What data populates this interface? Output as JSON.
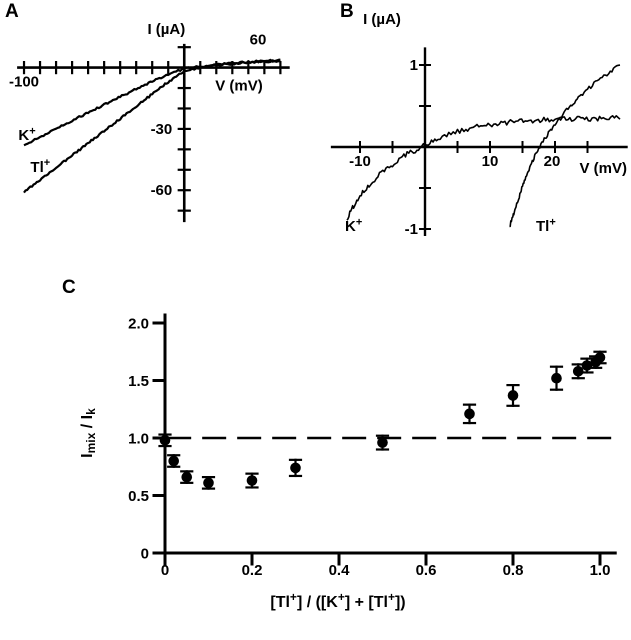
{
  "chart_data": [
    {
      "panel": "A",
      "type": "line",
      "x_axis": {
        "label": "V (mV)",
        "range": [
          -104,
          65
        ],
        "ticks": [
          -100,
          -90,
          -80,
          -70,
          -60,
          -50,
          -40,
          -30,
          -20,
          -10,
          10,
          20,
          30,
          40,
          50,
          60
        ],
        "labeled_ticks": [
          {
            "value": -100,
            "label": "-100"
          },
          {
            "value": 60,
            "label": "60"
          }
        ]
      },
      "y_axis": {
        "label": "I (µA)",
        "range": [
          -75,
          11
        ],
        "ticks": [
          10,
          -10,
          -20,
          -30,
          -40,
          -50,
          -60,
          -70
        ],
        "labeled_ticks": [
          {
            "value": -30,
            "label": "-30"
          },
          {
            "value": -60,
            "label": "-60"
          }
        ]
      },
      "series": [
        {
          "name": "K+",
          "label_rich": "K^{+}",
          "points": [
            [
              -100,
              -38
            ],
            [
              -90,
              -34
            ],
            [
              -80,
              -30
            ],
            [
              -70,
              -26
            ],
            [
              -60,
              -22
            ],
            [
              -50,
              -18.2
            ],
            [
              -40,
              -14.3
            ],
            [
              -30,
              -10.5
            ],
            [
              -20,
              -6.8
            ],
            [
              -10,
              -3.2
            ],
            [
              0,
              -0.6
            ],
            [
              10,
              0.6
            ],
            [
              20,
              1.3
            ],
            [
              30,
              1.9
            ],
            [
              40,
              2.4
            ],
            [
              50,
              2.9
            ],
            [
              60,
              3.3
            ]
          ]
        },
        {
          "name": "Tl+",
          "label_rich": "Tl^{+}",
          "points": [
            [
              -100,
              -61
            ],
            [
              -90,
              -55
            ],
            [
              -80,
              -49
            ],
            [
              -70,
              -43
            ],
            [
              -60,
              -37
            ],
            [
              -50,
              -31
            ],
            [
              -40,
              -25
            ],
            [
              -30,
              -19
            ],
            [
              -20,
              -13
            ],
            [
              -10,
              -7
            ],
            [
              0,
              -1.8
            ],
            [
              10,
              0.2
            ],
            [
              20,
              1.4
            ],
            [
              30,
              2.1
            ],
            [
              40,
              2.7
            ],
            [
              50,
              3.2
            ],
            [
              60,
              3.7
            ]
          ]
        }
      ]
    },
    {
      "panel": "B",
      "type": "line",
      "x_axis": {
        "label": "V (mV)",
        "range": [
          -14,
          31
        ],
        "ticks": [
          -10,
          -5,
          5,
          10,
          15,
          20,
          25
        ],
        "labeled_ticks": [
          {
            "value": -10,
            "label": "-10"
          },
          {
            "value": 10,
            "label": "10"
          },
          {
            "value": 20,
            "label": "20"
          }
        ]
      },
      "y_axis": {
        "label": "I (µA)",
        "range": [
          -1.07,
          1.2
        ],
        "ticks": [
          -1,
          -0.5,
          0.5,
          1
        ],
        "labeled_ticks": [
          {
            "value": 1,
            "label": "1"
          },
          {
            "value": -1,
            "label": "-1"
          }
        ]
      },
      "series": [
        {
          "name": "K+",
          "label_rich": "K^{+}",
          "points": [
            [
              -12,
              -0.88
            ],
            [
              -11,
              -0.72
            ],
            [
              -10,
              -0.6
            ],
            [
              -9,
              -0.5
            ],
            [
              -8,
              -0.41
            ],
            [
              -7,
              -0.34
            ],
            [
              -6,
              -0.27
            ],
            [
              -5,
              -0.21
            ],
            [
              -4,
              -0.15
            ],
            [
              -3,
              -0.1
            ],
            [
              -2,
              -0.06
            ],
            [
              -1,
              -0.02
            ],
            [
              0,
              0.03
            ],
            [
              1,
              0.07
            ],
            [
              2,
              0.11
            ],
            [
              3,
              0.14
            ],
            [
              4,
              0.17
            ],
            [
              5,
              0.19
            ],
            [
              6,
              0.21
            ],
            [
              8,
              0.25
            ],
            [
              10,
              0.27
            ],
            [
              12,
              0.29
            ],
            [
              14,
              0.31
            ],
            [
              16,
              0.32
            ],
            [
              18,
              0.33
            ],
            [
              20,
              0.33
            ],
            [
              22,
              0.34
            ],
            [
              24,
              0.34
            ],
            [
              26,
              0.35
            ],
            [
              28,
              0.35
            ],
            [
              30,
              0.36
            ]
          ]
        },
        {
          "name": "Tl+",
          "label_rich": "Tl^{+}",
          "points": [
            [
              13,
              -0.97
            ],
            [
              13.5,
              -0.85
            ],
            [
              14,
              -0.72
            ],
            [
              14.5,
              -0.6
            ],
            [
              15,
              -0.48
            ],
            [
              15.5,
              -0.37
            ],
            [
              16,
              -0.27
            ],
            [
              16.5,
              -0.18
            ],
            [
              17,
              -0.09
            ],
            [
              17.5,
              -0.02
            ],
            [
              18,
              0.05
            ],
            [
              19,
              0.17
            ],
            [
              20,
              0.28
            ],
            [
              21,
              0.38
            ],
            [
              22,
              0.47
            ],
            [
              23,
              0.55
            ],
            [
              24,
              0.63
            ],
            [
              25,
              0.7
            ],
            [
              26,
              0.77
            ],
            [
              27,
              0.83
            ],
            [
              28,
              0.89
            ],
            [
              29,
              0.95
            ],
            [
              30,
              1.0
            ]
          ]
        }
      ]
    },
    {
      "panel": "C",
      "type": "scatter",
      "x_axis": {
        "label": "[Tl^{+}] / ([K^{+}] + [Tl^{+}])",
        "range": [
          0,
          1.0
        ],
        "ticks": [
          0,
          0.2,
          0.4,
          0.6,
          0.8,
          1.0
        ],
        "tick_labels": [
          "0",
          "0.2",
          "0.4",
          "0.6",
          "0.8",
          "1.0"
        ]
      },
      "y_axis": {
        "label": "I_{mix} / I_{k}",
        "range": [
          0,
          2.0
        ],
        "ticks": [
          0,
          0.5,
          1.0,
          1.5,
          2.0
        ],
        "tick_labels": [
          "0",
          "0.5",
          "1.0",
          "1.5",
          "2.0"
        ]
      },
      "reference_line": {
        "y": 1.0,
        "style": "dashed"
      },
      "points": [
        {
          "x": 0.0,
          "y": 0.98,
          "err": 0.05
        },
        {
          "x": 0.02,
          "y": 0.8,
          "err": 0.05
        },
        {
          "x": 0.05,
          "y": 0.66,
          "err": 0.05
        },
        {
          "x": 0.1,
          "y": 0.61,
          "err": 0.05
        },
        {
          "x": 0.2,
          "y": 0.63,
          "err": 0.06
        },
        {
          "x": 0.3,
          "y": 0.74,
          "err": 0.07
        },
        {
          "x": 0.5,
          "y": 0.96,
          "err": 0.06
        },
        {
          "x": 0.7,
          "y": 1.21,
          "err": 0.08
        },
        {
          "x": 0.8,
          "y": 1.37,
          "err": 0.09
        },
        {
          "x": 0.9,
          "y": 1.52,
          "err": 0.1
        },
        {
          "x": 0.95,
          "y": 1.58,
          "err": 0.06
        },
        {
          "x": 0.97,
          "y": 1.63,
          "err": 0.06
        },
        {
          "x": 0.99,
          "y": 1.66,
          "err": 0.05
        },
        {
          "x": 1.0,
          "y": 1.7,
          "err": 0.05
        }
      ]
    }
  ]
}
